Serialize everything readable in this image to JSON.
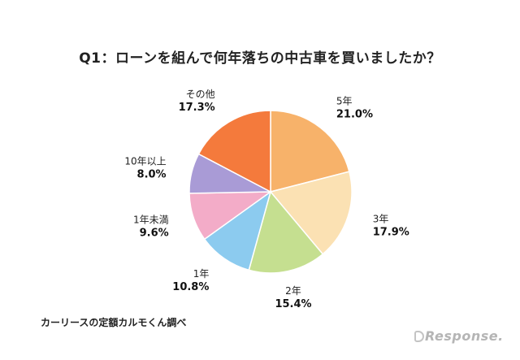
{
  "chart_data": {
    "type": "pie",
    "title": "Q1：ローンを組んで何年落ちの中古車を買いましたか？",
    "slices": [
      {
        "label": "5年",
        "value": 21.0,
        "display": "21.0%",
        "color": "#f7b26a"
      },
      {
        "label": "3年",
        "value": 17.9,
        "display": "17.9%",
        "color": "#fbe1b3"
      },
      {
        "label": "2年",
        "value": 15.4,
        "display": "15.4%",
        "color": "#c5df90"
      },
      {
        "label": "1年",
        "value": 10.8,
        "display": "10.8%",
        "color": "#8ccbef"
      },
      {
        "label": "1年未満",
        "value": 9.6,
        "display": "9.6%",
        "color": "#f3acc8"
      },
      {
        "label": "10年以上",
        "value": 8.0,
        "display": "8.0%",
        "color": "#a99bd6"
      },
      {
        "label": "その他",
        "value": 17.3,
        "display": "17.3%",
        "color": "#f47a3c"
      }
    ],
    "start_angle_deg": 0,
    "direction": "clockwise"
  },
  "source": "カーリースの定額カルモくん調べ",
  "watermark": "Response."
}
